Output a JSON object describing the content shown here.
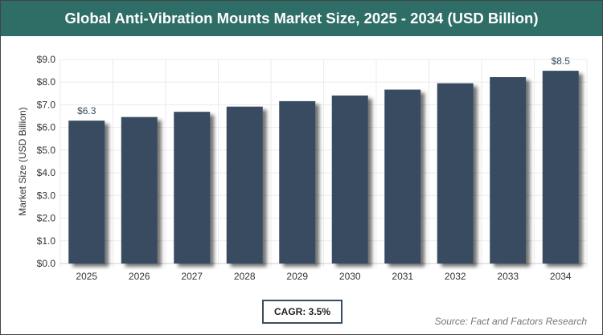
{
  "chart_data": {
    "type": "bar",
    "title": "Global Anti-Vibration Mounts Market Size, 2025 - 2034 (USD Billion)",
    "xlabel": "",
    "ylabel": "Market Size (USD Billion)",
    "categories": [
      "2025",
      "2026",
      "2027",
      "2028",
      "2029",
      "2030",
      "2031",
      "2032",
      "2033",
      "2034"
    ],
    "values": [
      6.3,
      6.46,
      6.69,
      6.92,
      7.16,
      7.41,
      7.67,
      7.95,
      8.22,
      8.5
    ],
    "data_labels": {
      "0": "$6.3",
      "9": "$8.5"
    },
    "ylim": [
      0,
      9
    ],
    "yticks": [
      "$0.0",
      "$1.0",
      "$2.0",
      "$3.0",
      "$4.0",
      "$5.0",
      "$6.0",
      "$7.0",
      "$8.0",
      "$9.0"
    ],
    "grid": true,
    "bar_color": "#394c60",
    "title_bar_color": "#2f6e66"
  },
  "cagr": "CAGR: 3.5%",
  "source": "Source: Fact and Factors Research"
}
